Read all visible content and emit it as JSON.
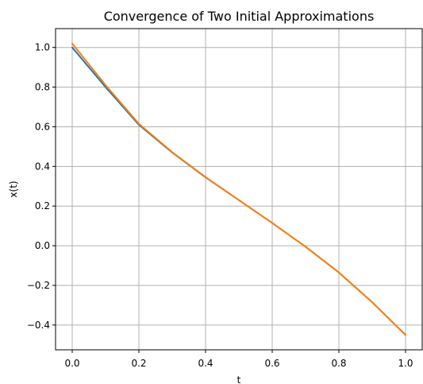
{
  "chart_data": {
    "type": "line",
    "title": "Convergence of Two Initial Approximations",
    "xlabel": "t",
    "ylabel": "x(t)",
    "xlim": [
      -0.05,
      1.05
    ],
    "ylim": [
      -0.525,
      1.095
    ],
    "xticks": [
      0.0,
      0.2,
      0.4,
      0.6,
      0.8,
      1.0
    ],
    "xtick_labels": [
      "0.0",
      "0.2",
      "0.4",
      "0.6",
      "0.8",
      "1.0"
    ],
    "yticks": [
      -0.4,
      -0.2,
      0.0,
      0.2,
      0.4,
      0.6,
      0.8,
      1.0
    ],
    "ytick_labels": [
      "−0.4",
      "−0.2",
      "0.0",
      "0.2",
      "0.4",
      "0.6",
      "0.8",
      "1.0"
    ],
    "grid": true,
    "x": [
      0.0,
      0.1,
      0.2,
      0.3,
      0.4,
      0.5,
      0.6,
      0.7,
      0.8,
      0.9,
      1.0
    ],
    "series": [
      {
        "color": "#1f77b4",
        "values": [
          1.0,
          0.8,
          0.61,
          0.47,
          0.345,
          0.23,
          0.115,
          -0.005,
          -0.135,
          -0.285,
          -0.45
        ]
      },
      {
        "color": "#ff7f0e",
        "values": [
          1.02,
          0.81,
          0.615,
          0.472,
          0.346,
          0.23,
          0.115,
          -0.005,
          -0.135,
          -0.285,
          -0.45
        ]
      }
    ]
  }
}
